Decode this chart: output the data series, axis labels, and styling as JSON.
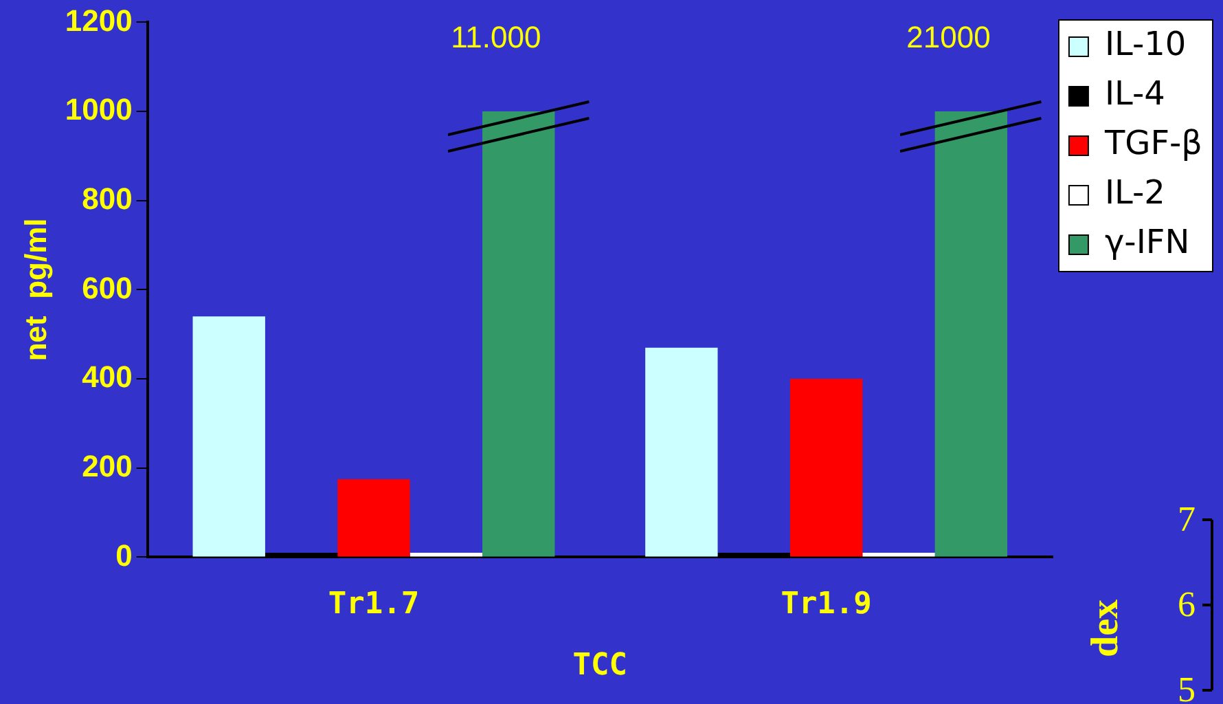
{
  "chart_data": [
    {
      "type": "bar",
      "xlabel": "TCC",
      "ylabel": "net  pg/ml",
      "categories": [
        "Tr1.7",
        "Tr1.9"
      ],
      "series": [
        {
          "name": "IL-10",
          "color": "#ccffff",
          "values": [
            540,
            470
          ]
        },
        {
          "name": "IL-4",
          "color": "#000000",
          "values": [
            10,
            10
          ]
        },
        {
          "name": "TGF-β",
          "color": "#ff0000",
          "values": [
            175,
            400
          ]
        },
        {
          "name": "IL-2",
          "color": "#ffffff",
          "values": [
            10,
            10
          ]
        },
        {
          "name": "γ-IFN",
          "color": "#339966",
          "values": [
            1000,
            1000
          ]
        }
      ],
      "ylim": [
        0,
        1200
      ],
      "yticks": [
        0,
        200,
        400,
        600,
        800,
        1000,
        1200
      ],
      "grid": false,
      "legend": "top right",
      "annotations": [
        "11.000",
        "21000"
      ]
    },
    {
      "type": "other",
      "ylabel": "dex",
      "annotations": [
        "7",
        "6",
        "5"
      ]
    }
  ]
}
